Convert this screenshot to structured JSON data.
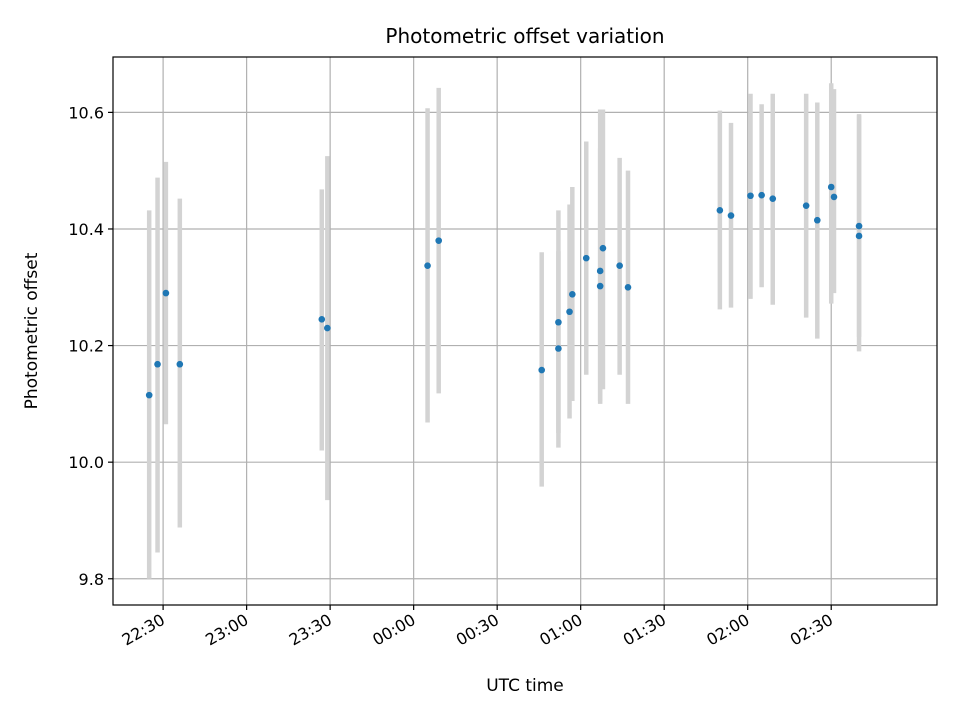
{
  "chart_data": {
    "type": "scatter",
    "title": "Photometric offset variation",
    "xlabel": "UTC time",
    "ylabel": "Photometric offset",
    "xlim": [
      "22:12",
      "03:08"
    ],
    "ylim": [
      9.755,
      10.695
    ],
    "x_ticks": [
      "22:30",
      "23:00",
      "23:30",
      "00:00",
      "00:30",
      "01:00",
      "01:30",
      "02:00",
      "02:30"
    ],
    "y_ticks": [
      9.8,
      10.0,
      10.2,
      10.4,
      10.6
    ],
    "y_tick_labels": [
      "9.8",
      "10.0",
      "10.2",
      "10.4",
      "10.6"
    ],
    "grid": true,
    "colors": {
      "marker": "#1f77b4",
      "errorbar": "#d3d3d3",
      "grid": "#b0b0b0"
    },
    "series": [
      {
        "x": [
          "22:25",
          "22:28",
          "22:31",
          "22:36",
          "23:27",
          "23:29",
          "00:05",
          "00:09",
          "00:46",
          "00:52",
          "00:52",
          "00:56",
          "00:57",
          "01:02",
          "01:07",
          "01:07",
          "01:08",
          "01:14",
          "01:17",
          "01:50",
          "01:54",
          "02:01",
          "02:05",
          "02:09",
          "02:21",
          "02:25",
          "02:30",
          "02:31",
          "02:40",
          "02:40"
        ],
        "y": [
          10.115,
          10.168,
          10.29,
          10.168,
          10.245,
          10.23,
          10.337,
          10.38,
          10.158,
          10.195,
          10.24,
          10.258,
          10.288,
          10.35,
          10.328,
          10.302,
          10.367,
          10.337,
          10.3,
          10.432,
          10.423,
          10.457,
          10.458,
          10.452,
          10.44,
          10.415,
          10.472,
          10.455,
          10.388,
          10.405
        ],
        "yerr_low": [
          9.8,
          9.845,
          10.065,
          9.888,
          10.02,
          9.935,
          10.068,
          10.118,
          9.958,
          10.025,
          10.05,
          10.075,
          10.105,
          10.15,
          10.1,
          10.105,
          10.125,
          10.15,
          10.1,
          10.262,
          10.265,
          10.28,
          10.3,
          10.27,
          10.248,
          10.212,
          10.272,
          10.29,
          10.19,
          10.215
        ],
        "yerr_high": [
          10.432,
          10.488,
          10.515,
          10.452,
          10.468,
          10.525,
          10.607,
          10.642,
          10.36,
          10.362,
          10.432,
          10.442,
          10.472,
          10.55,
          10.538,
          10.605,
          10.605,
          10.522,
          10.5,
          10.603,
          10.582,
          10.632,
          10.614,
          10.632,
          10.632,
          10.617,
          10.65,
          10.64,
          10.597,
          10.595
        ]
      }
    ]
  }
}
